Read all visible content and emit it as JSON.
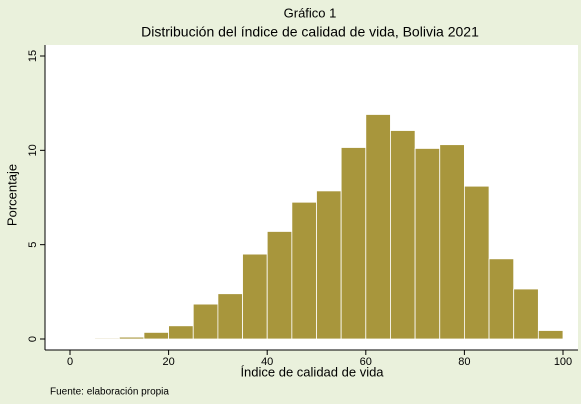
{
  "chart_data": {
    "type": "histogram",
    "supertitle": "Gráfico 1",
    "title": "Distribución del índice de calidad de vida, Bolivia 2021",
    "x_label": "Índice de calidad de vida",
    "y_label": "Porcentaje",
    "source": "Fuente: elaboración propia",
    "bins": [
      0,
      5,
      10,
      15,
      20,
      25,
      30,
      35,
      40,
      45,
      50,
      55,
      60,
      65,
      70,
      75,
      80,
      85,
      90,
      95,
      100
    ],
    "values": [
      0.02,
      0.05,
      0.1,
      0.35,
      0.7,
      1.85,
      2.4,
      4.5,
      5.7,
      7.25,
      7.85,
      10.15,
      11.9,
      11.05,
      10.1,
      10.3,
      8.1,
      4.25,
      2.65,
      0.45
    ],
    "color": "#a8963c",
    "xlim": [
      0,
      100
    ],
    "xticks": [
      0,
      20,
      40,
      60,
      80,
      100
    ],
    "ylim": [
      0,
      15
    ],
    "yticks": [
      0,
      5,
      10,
      15
    ]
  }
}
